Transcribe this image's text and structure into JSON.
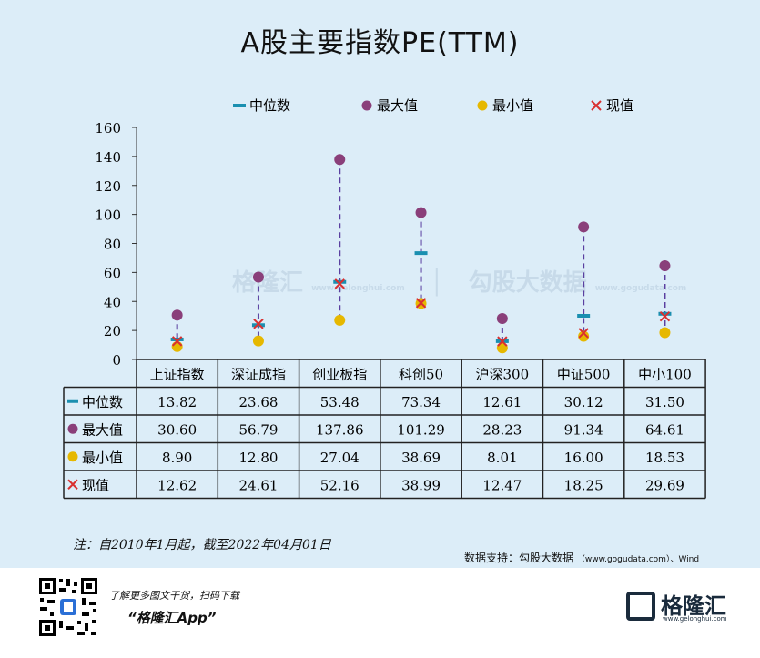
{
  "title": "A股主要指数PE(TTM)",
  "legend": [
    {
      "label": "中位数",
      "marker": "dash",
      "color": "#1a8fb0"
    },
    {
      "label": "最大值",
      "marker": "circle",
      "color": "#8a3f7a"
    },
    {
      "label": "最小值",
      "marker": "circle",
      "color": "#e6b800"
    },
    {
      "label": "现值",
      "marker": "cross",
      "color": "#d93030"
    }
  ],
  "chart_data": {
    "type": "scatter",
    "title": "A股主要指数PE(TTM)",
    "ylim": [
      0,
      160
    ],
    "yticks": [
      "0",
      "20",
      "40",
      "60",
      "80",
      "100",
      "120",
      "140",
      "160"
    ],
    "categories": [
      "上证指数",
      "深证成指",
      "创业板指",
      "科创50",
      "沪深300",
      "中证500",
      "中小100"
    ],
    "series": [
      {
        "name": "中位数",
        "values": [
          13.82,
          23.68,
          53.48,
          73.34,
          12.61,
          30.12,
          31.5
        ]
      },
      {
        "name": "最大值",
        "values": [
          30.6,
          56.79,
          137.86,
          101.29,
          28.23,
          91.34,
          64.61
        ]
      },
      {
        "name": "最小值",
        "values": [
          8.9,
          12.8,
          27.04,
          38.69,
          8.01,
          16.0,
          18.53
        ]
      },
      {
        "name": "现值",
        "values": [
          12.62,
          24.61,
          52.16,
          38.99,
          12.47,
          18.25,
          29.69
        ]
      }
    ],
    "table": {
      "rows": [
        {
          "label": "中位数",
          "cells": [
            "13.82",
            "23.68",
            "53.48",
            "73.34",
            "12.61",
            "30.12",
            "31.50"
          ]
        },
        {
          "label": "最大值",
          "cells": [
            "30.60",
            "56.79",
            "137.86",
            "101.29",
            "28.23",
            "91.34",
            "64.61"
          ]
        },
        {
          "label": "最小值",
          "cells": [
            "8.90",
            "12.80",
            "27.04",
            "38.69",
            "8.01",
            "16.00",
            "18.53"
          ]
        },
        {
          "label": "现值",
          "cells": [
            "12.62",
            "24.61",
            "52.16",
            "38.99",
            "12.47",
            "18.25",
            "29.69"
          ]
        }
      ]
    }
  },
  "note": "注：自2010年1月起，截至2022年04月01日",
  "source": {
    "main": "数据支持：勾股大数据",
    "detail": "（www.gogudata.com）、Wind"
  },
  "watermark": {
    "brand1": "格隆汇",
    "brand1_url": "www.gelonghui.com",
    "brand2": "勾股大数据",
    "brand2_url": "www.gogudata.com"
  },
  "footer": {
    "promo_line": "了解更多图文干货，扫码下载",
    "app_name": "“格隆汇App”",
    "logo_text": "格隆汇",
    "logo_url": "www.gelonghui.com"
  }
}
